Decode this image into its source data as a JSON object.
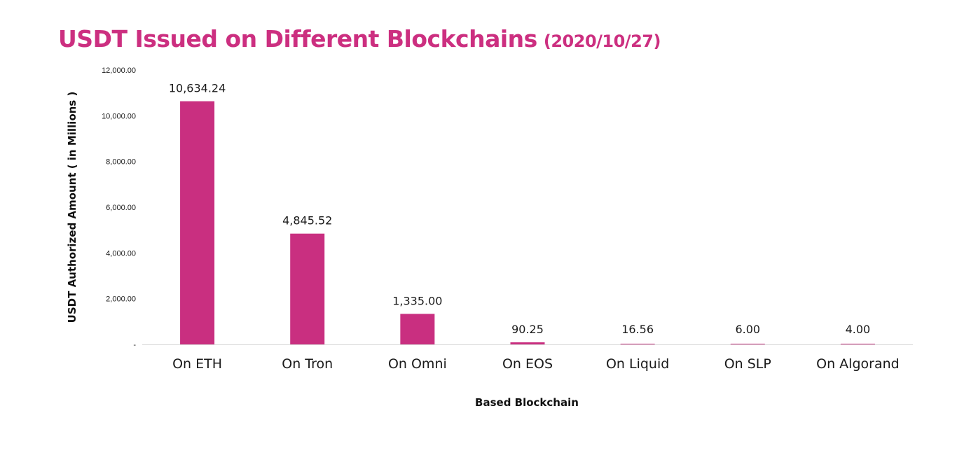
{
  "title": {
    "main": "USDT Issued on Different Blockchains",
    "date": "(2020/10/27)"
  },
  "colors": {
    "title": "#cc2f80",
    "bar": "#c92f80",
    "axis": "#d9d9d9"
  },
  "chart_data": {
    "type": "bar",
    "title": "USDT Issued on Different Blockchains (2020/10/27)",
    "xlabel": "Based Blockchain",
    "ylabel": "USDT Authorized Amount ( in Millions )",
    "categories": [
      "On ETH",
      "On Tron",
      "On Omni",
      "On EOS",
      "On Liquid",
      "On SLP",
      "On Algorand"
    ],
    "values": [
      10634.24,
      4845.52,
      1335.0,
      90.25,
      16.56,
      6.0,
      4.0
    ],
    "value_labels": [
      "10,634.24",
      "4,845.52",
      "1,335.00",
      "90.25",
      "16.56",
      "6.00",
      "4.00"
    ],
    "yticks": [
      0,
      2000,
      4000,
      6000,
      8000,
      10000,
      12000
    ],
    "ytick_labels": [
      "-",
      "2,000.00",
      "4,000.00",
      "6,000.00",
      "8,000.00",
      "10,000.00",
      "12,000.00"
    ],
    "ylim": [
      0,
      12000
    ],
    "grid": false,
    "legend": "none"
  }
}
